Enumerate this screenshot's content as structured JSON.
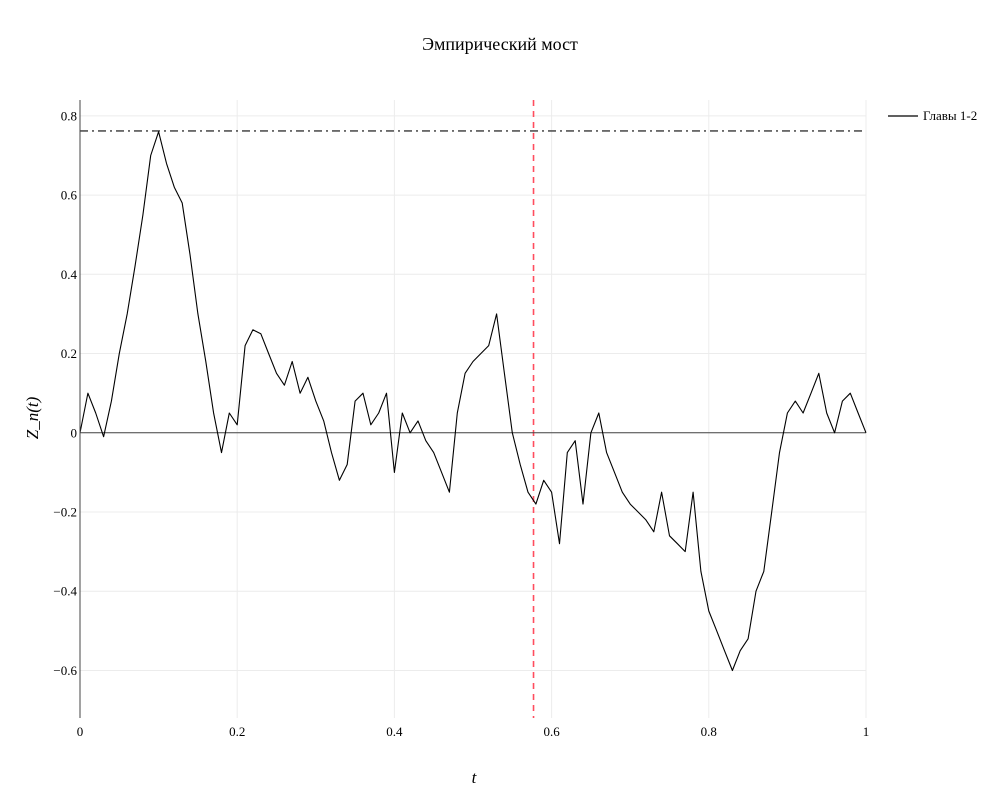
{
  "chart_data": {
    "type": "line",
    "title": "Эмпирический мост",
    "xlabel": "t",
    "ylabel": "Z_n(t)",
    "xlim": [
      0,
      1
    ],
    "ylim": [
      -0.72,
      0.84
    ],
    "x_ticks": [
      0,
      0.2,
      0.4,
      0.6,
      0.8,
      1
    ],
    "x_tick_labels": [
      "0",
      "0.2",
      "0.4",
      "0.6",
      "0.8",
      "1"
    ],
    "y_ticks": [
      -0.6,
      -0.4,
      -0.2,
      0,
      0.2,
      0.4,
      0.6,
      0.8
    ],
    "y_tick_labels": [
      "−0.6",
      "−0.4",
      "−0.2",
      "0",
      "0.2",
      "0.4",
      "0.6",
      "0.8"
    ],
    "grid": true,
    "legend_position": "top-right",
    "series": [
      {
        "name": "Главы 1-2",
        "color": "#000000",
        "x": [
          0,
          0.01,
          0.02,
          0.03,
          0.04,
          0.05,
          0.06,
          0.07,
          0.08,
          0.09,
          0.1,
          0.11,
          0.12,
          0.13,
          0.14,
          0.15,
          0.16,
          0.17,
          0.18,
          0.19,
          0.2,
          0.21,
          0.22,
          0.23,
          0.24,
          0.25,
          0.26,
          0.27,
          0.28,
          0.29,
          0.3,
          0.31,
          0.32,
          0.33,
          0.34,
          0.35,
          0.36,
          0.37,
          0.38,
          0.39,
          0.4,
          0.41,
          0.42,
          0.43,
          0.44,
          0.45,
          0.46,
          0.47,
          0.48,
          0.49,
          0.5,
          0.51,
          0.52,
          0.53,
          0.54,
          0.55,
          0.56,
          0.57,
          0.58,
          0.59,
          0.6,
          0.61,
          0.62,
          0.63,
          0.64,
          0.65,
          0.66,
          0.67,
          0.68,
          0.69,
          0.7,
          0.71,
          0.72,
          0.73,
          0.74,
          0.75,
          0.76,
          0.77,
          0.78,
          0.79,
          0.8,
          0.81,
          0.82,
          0.83,
          0.84,
          0.85,
          0.86,
          0.87,
          0.88,
          0.89,
          0.9,
          0.91,
          0.92,
          0.93,
          0.94,
          0.95,
          0.96,
          0.97,
          0.98,
          0.99,
          1
        ],
        "y": [
          0,
          0.1,
          0.05,
          -0.01,
          0.08,
          0.2,
          0.3,
          0.42,
          0.55,
          0.7,
          0.76,
          0.68,
          0.62,
          0.58,
          0.45,
          0.3,
          0.18,
          0.05,
          -0.05,
          0.05,
          0.02,
          0.22,
          0.26,
          0.25,
          0.2,
          0.15,
          0.12,
          0.18,
          0.1,
          0.14,
          0.08,
          0.03,
          -0.05,
          -0.12,
          -0.08,
          0.08,
          0.1,
          0.02,
          0.05,
          0.1,
          -0.1,
          0.05,
          0.0,
          0.03,
          -0.02,
          -0.05,
          -0.1,
          -0.15,
          0.05,
          0.15,
          0.18,
          0.2,
          0.22,
          0.3,
          0.15,
          0.0,
          -0.08,
          -0.15,
          -0.18,
          -0.12,
          -0.15,
          -0.28,
          -0.05,
          -0.02,
          -0.18,
          0.0,
          0.05,
          -0.05,
          -0.1,
          -0.15,
          -0.18,
          -0.2,
          -0.22,
          -0.25,
          -0.15,
          -0.26,
          -0.28,
          -0.3,
          -0.15,
          -0.35,
          -0.45,
          -0.5,
          -0.55,
          -0.6,
          -0.55,
          -0.52,
          -0.4,
          -0.35,
          -0.2,
          -0.05,
          0.05,
          0.08,
          0.05,
          0.1,
          0.15,
          0.05,
          0.0,
          0.08,
          0.1,
          0.05,
          0
        ]
      }
    ],
    "reference_lines": [
      {
        "orientation": "horizontal",
        "value": 0.762,
        "style": "dashdot",
        "color": "#555555"
      },
      {
        "orientation": "vertical",
        "value": 0.577,
        "style": "dashed",
        "color": "#ff4d5e"
      },
      {
        "orientation": "horizontal",
        "value": 0,
        "style": "solid",
        "color": "#444444"
      }
    ]
  }
}
